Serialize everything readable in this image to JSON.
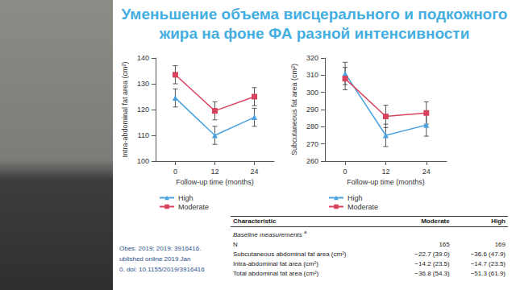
{
  "title": [
    "Уменьшение объема висцерального и подкожного",
    "жира на фоне ФА разной интенсивности"
  ],
  "chart_data": [
    {
      "type": "line",
      "y_label": "Intra-abdominal fat area (cm²)",
      "x_label": "Follow-up time (months)",
      "categories": [
        "0",
        "12",
        "24"
      ],
      "series": [
        {
          "name": "High",
          "color": "#4aa3df",
          "marker": "triangle",
          "values": [
            124.5,
            110,
            117
          ],
          "errors": [
            3.5,
            3.5,
            3.5
          ]
        },
        {
          "name": "Moderate",
          "color": "#d9435e",
          "marker": "rect",
          "values": [
            133.5,
            119.5,
            125
          ],
          "errors": [
            3.5,
            3.5,
            3.5
          ]
        }
      ],
      "ylim": [
        100,
        140
      ],
      "yticks": [
        100,
        110,
        120,
        130,
        140
      ],
      "grid": false,
      "legend": "bottom-left"
    },
    {
      "type": "line",
      "y_label": "Subcutaneous fat area (cm²)",
      "x_label": "Follow-up time (months)",
      "categories": [
        "0",
        "12",
        "24"
      ],
      "series": [
        {
          "name": "High",
          "color": "#4aa3df",
          "marker": "triangle",
          "values": [
            311,
            275,
            281
          ],
          "errors": [
            6.5,
            6.5,
            6.5
          ]
        },
        {
          "name": "Moderate",
          "color": "#d9435e",
          "marker": "rect",
          "values": [
            308,
            286,
            288
          ],
          "errors": [
            6.5,
            6.5,
            6.5
          ]
        }
      ],
      "ylim": [
        260,
        320
      ],
      "yticks": [
        260,
        270,
        280,
        290,
        300,
        310,
        320
      ],
      "grid": false,
      "legend": "bottom-left"
    }
  ],
  "table": {
    "header": [
      "Characteristic",
      "Moderate",
      "High"
    ],
    "section": {
      "text": "Baseline measurements",
      "note_mark": "a"
    },
    "rows": [
      [
        "N",
        "165",
        "169"
      ],
      [
        "Subcutaneous abdominal fat area (cm²)",
        "−22.7 (39.0)",
        "−36.6 (47.9)"
      ],
      [
        "Intra-abdominal fat area (cm²)",
        "−14.2 (23.5)",
        "−14.7 (23.5)"
      ],
      [
        "Total abdominal fat area (cm²)",
        "−36.8 (54.3)",
        "−51.3 (61.9)"
      ]
    ]
  },
  "citation": [
    "Obes. 2019; 2019: 3916416.",
    "ublished online 2019 Jan",
    "0. doi: 10.1155/2019/3916416"
  ]
}
